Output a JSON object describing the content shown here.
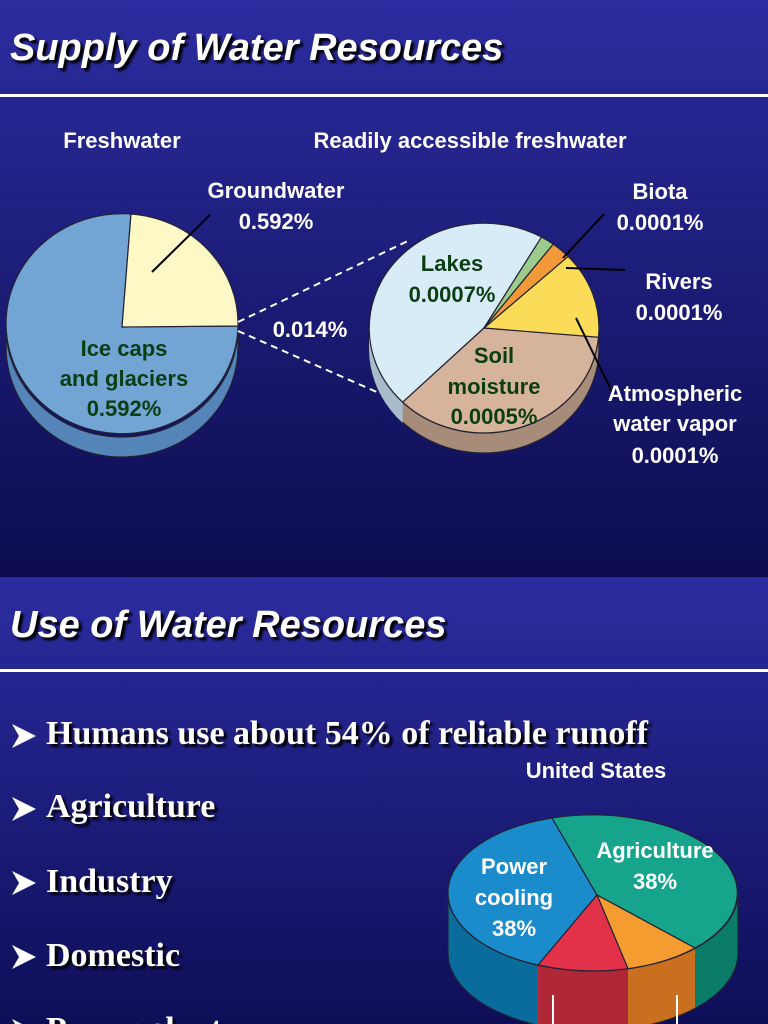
{
  "slide1": {
    "title": "Supply of Water Resources",
    "left_heading": "Freshwater",
    "right_heading": "Readily accessible freshwater",
    "groundwater": [
      "Groundwater",
      "0.592%"
    ],
    "ice_caps": [
      "Ice caps",
      "and glaciers",
      "0.592%"
    ],
    "connector": "0.014%",
    "lakes": [
      "Lakes",
      "0.0007%"
    ],
    "soil": [
      "Soil",
      "moisture",
      "0.0005%"
    ],
    "biota": [
      "Biota",
      "0.0001%"
    ],
    "rivers": [
      "Rivers",
      "0.0001%"
    ],
    "atmospheric": [
      "Atmospheric",
      "water vapor",
      "0.0001%"
    ]
  },
  "slide2": {
    "title": "Use of Water Resources",
    "bullets": [
      "Humans use about 54% of reliable runoff",
      "Agriculture",
      "Industry",
      "Domestic",
      "Power plants"
    ],
    "chart_title": "United States",
    "power_cooling": [
      "Power",
      "cooling",
      "38%"
    ],
    "agriculture": [
      "Agriculture",
      "38%"
    ]
  }
}
